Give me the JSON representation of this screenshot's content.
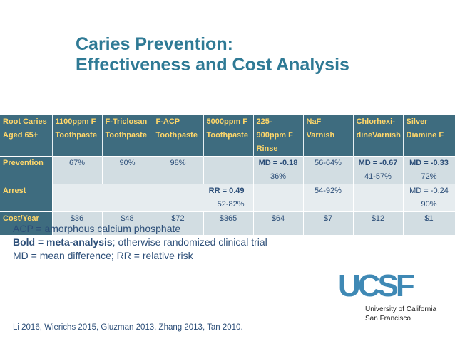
{
  "title": {
    "line1": "Caries Prevention:",
    "line2": "Effectiveness and Cost Analysis"
  },
  "table": {
    "headers": [
      "Root Caries Aged 65+",
      "1100ppm F Toothpaste",
      "F-Triclosan Toothpaste",
      "F-ACP Toothpaste",
      "5000ppm F Toothpaste",
      "225-900ppm F Rinse",
      "NaF Varnish",
      "Chlorhexi-dineVarnish",
      "Silver Diamine F"
    ],
    "rows": [
      {
        "label": "Prevention",
        "cells": [
          {
            "b": "",
            "v": "67%"
          },
          {
            "b": "",
            "v": "90%"
          },
          {
            "b": "",
            "v": "98%"
          },
          {
            "b": "",
            "v": ""
          },
          {
            "b": "MD = -0.18",
            "v": "36%"
          },
          {
            "b": "",
            "v": "56-64%"
          },
          {
            "b": "MD = -0.67",
            "v": "41-57%"
          },
          {
            "b": "MD = -0.33",
            "v": "72%"
          }
        ]
      },
      {
        "label": "Arrest",
        "cells": [
          {
            "b": "RR = 0.49",
            "v": "52-82%"
          },
          {
            "b": "",
            "v": "54-92%"
          },
          {
            "b": "",
            "v": ""
          },
          {
            "b": "",
            "v": "MD = -0.24"
          },
          {
            "b": "",
            "v": "90%"
          }
        ]
      },
      {
        "label": "Cost/Year",
        "cells": [
          {
            "b": "",
            "v": "$36"
          },
          {
            "b": "",
            "v": "$48"
          },
          {
            "b": "",
            "v": "$72"
          },
          {
            "b": "",
            "v": "$365"
          },
          {
            "b": "",
            "v": "$64"
          },
          {
            "b": "",
            "v": "$7"
          },
          {
            "b": "",
            "v": "$12"
          },
          {
            "b": "",
            "v": "$1"
          }
        ]
      }
    ]
  },
  "notes": {
    "acp": "ACP = amorphous calcium phosphate",
    "bold_prefix": "Bold = meta-analysis",
    "bold_suffix": "; otherwise randomized clinical trial",
    "md_rr": "MD = mean difference; RR = relative risk"
  },
  "references": "Li 2016, Wierichs 2015, Gluzman 2013, Zhang 2013, Tan 2010.",
  "logo": {
    "mark": "UCSF",
    "name_line1": "University of California",
    "name_line2": "San Francisco"
  }
}
